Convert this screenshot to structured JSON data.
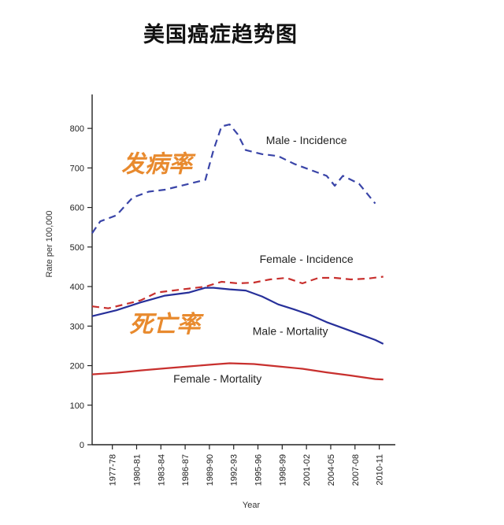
{
  "page_title": "美国癌症趋势图",
  "chart_data": {
    "type": "line",
    "title": "美国癌症趋势图",
    "xlabel": "Year",
    "ylabel": "Rate per 100,000",
    "ylim": [
      0,
      850
    ],
    "yticks": [
      0,
      100,
      200,
      300,
      400,
      500,
      600,
      700,
      800
    ],
    "xlim": [
      1975,
      2012
    ],
    "xtick_labels": [
      {
        "label": "1977-78",
        "year": 1977.5
      },
      {
        "label": "1980-81",
        "year": 1980.5
      },
      {
        "label": "1983-84",
        "year": 1983.5
      },
      {
        "label": "1986-87",
        "year": 1986.5
      },
      {
        "label": "1989-90",
        "year": 1989.5
      },
      {
        "label": "1992-93",
        "year": 1992.5
      },
      {
        "label": "1995-96",
        "year": 1995.5
      },
      {
        "label": "1998-99",
        "year": 1998.5
      },
      {
        "label": "2001-02",
        "year": 2001.5
      },
      {
        "label": "2004-05",
        "year": 2004.5
      },
      {
        "label": "2007-08",
        "year": 2007.5
      },
      {
        "label": "2010-11",
        "year": 2010.5
      }
    ],
    "grid": false,
    "series": [
      {
        "name": "Male - Incidence",
        "style": "dashed",
        "color": "#3a45a8",
        "points": [
          [
            1975,
            535
          ],
          [
            1976,
            565
          ],
          [
            1978,
            580
          ],
          [
            1980,
            625
          ],
          [
            1982,
            640
          ],
          [
            1984,
            645
          ],
          [
            1986,
            655
          ],
          [
            1988,
            665
          ],
          [
            1989,
            670
          ],
          [
            1990,
            745
          ],
          [
            1991,
            805
          ],
          [
            1992,
            810
          ],
          [
            1993,
            785
          ],
          [
            1994,
            745
          ],
          [
            1996,
            735
          ],
          [
            1998,
            730
          ],
          [
            2000,
            710
          ],
          [
            2002,
            695
          ],
          [
            2004,
            680
          ],
          [
            2005,
            655
          ],
          [
            2006,
            680
          ],
          [
            2008,
            660
          ],
          [
            2010,
            610
          ]
        ]
      },
      {
        "name": "Female - Incidence",
        "style": "dashed",
        "color": "#c8302e",
        "points": [
          [
            1975,
            350
          ],
          [
            1977,
            345
          ],
          [
            1979,
            355
          ],
          [
            1981,
            365
          ],
          [
            1983,
            385
          ],
          [
            1985,
            390
          ],
          [
            1987,
            395
          ],
          [
            1989,
            400
          ],
          [
            1991,
            412
          ],
          [
            1993,
            408
          ],
          [
            1995,
            410
          ],
          [
            1997,
            418
          ],
          [
            1999,
            422
          ],
          [
            2001,
            408
          ],
          [
            2003,
            422
          ],
          [
            2005,
            422
          ],
          [
            2007,
            418
          ],
          [
            2009,
            420
          ],
          [
            2011,
            425
          ]
        ]
      },
      {
        "name": "Male - Mortality",
        "style": "solid",
        "color": "#27309a",
        "points": [
          [
            1975,
            325
          ],
          [
            1978,
            340
          ],
          [
            1981,
            360
          ],
          [
            1984,
            377
          ],
          [
            1987,
            385
          ],
          [
            1989,
            397
          ],
          [
            1990,
            397
          ],
          [
            1992,
            393
          ],
          [
            1994,
            390
          ],
          [
            1996,
            375
          ],
          [
            1998,
            355
          ],
          [
            2000,
            342
          ],
          [
            2002,
            328
          ],
          [
            2004,
            310
          ],
          [
            2006,
            295
          ],
          [
            2008,
            280
          ],
          [
            2010,
            265
          ],
          [
            2011,
            255
          ]
        ]
      },
      {
        "name": "Female - Mortality",
        "style": "solid",
        "color": "#c8302e",
        "points": [
          [
            1975,
            178
          ],
          [
            1978,
            182
          ],
          [
            1981,
            188
          ],
          [
            1984,
            193
          ],
          [
            1987,
            198
          ],
          [
            1990,
            203
          ],
          [
            1992,
            206
          ],
          [
            1995,
            204
          ],
          [
            1998,
            198
          ],
          [
            2001,
            192
          ],
          [
            2004,
            183
          ],
          [
            2007,
            175
          ],
          [
            2010,
            166
          ],
          [
            2011,
            165
          ]
        ]
      }
    ],
    "series_labels": [
      {
        "text": "Male - Incidence",
        "x": 2001.5,
        "y": 760
      },
      {
        "text": "Female - Incidence",
        "x": 2001.5,
        "y": 460
      },
      {
        "text": "Male - Mortality",
        "x": 1999.5,
        "y": 278
      },
      {
        "text": "Female - Mortality",
        "x": 1990.5,
        "y": 157
      }
    ],
    "annotations": [
      {
        "text": "发病率",
        "x": 1983,
        "y": 690
      },
      {
        "text": "死亡率",
        "x": 1984,
        "y": 285
      }
    ]
  }
}
